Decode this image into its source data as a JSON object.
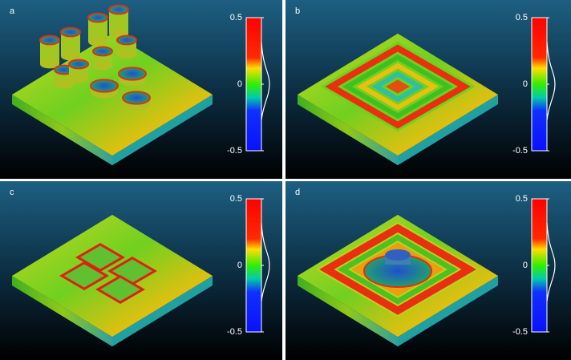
{
  "panels": [
    {
      "label": "a",
      "colorbar_ticks": [
        0.5,
        0,
        -0.5
      ]
    },
    {
      "label": "b",
      "colorbar_ticks": [
        0.5,
        0,
        -0.5
      ]
    },
    {
      "label": "c",
      "colorbar_ticks": [
        0.5,
        0,
        -0.5
      ]
    },
    {
      "label": "d",
      "colorbar_ticks": [
        0.5,
        0,
        -0.5
      ]
    }
  ]
}
